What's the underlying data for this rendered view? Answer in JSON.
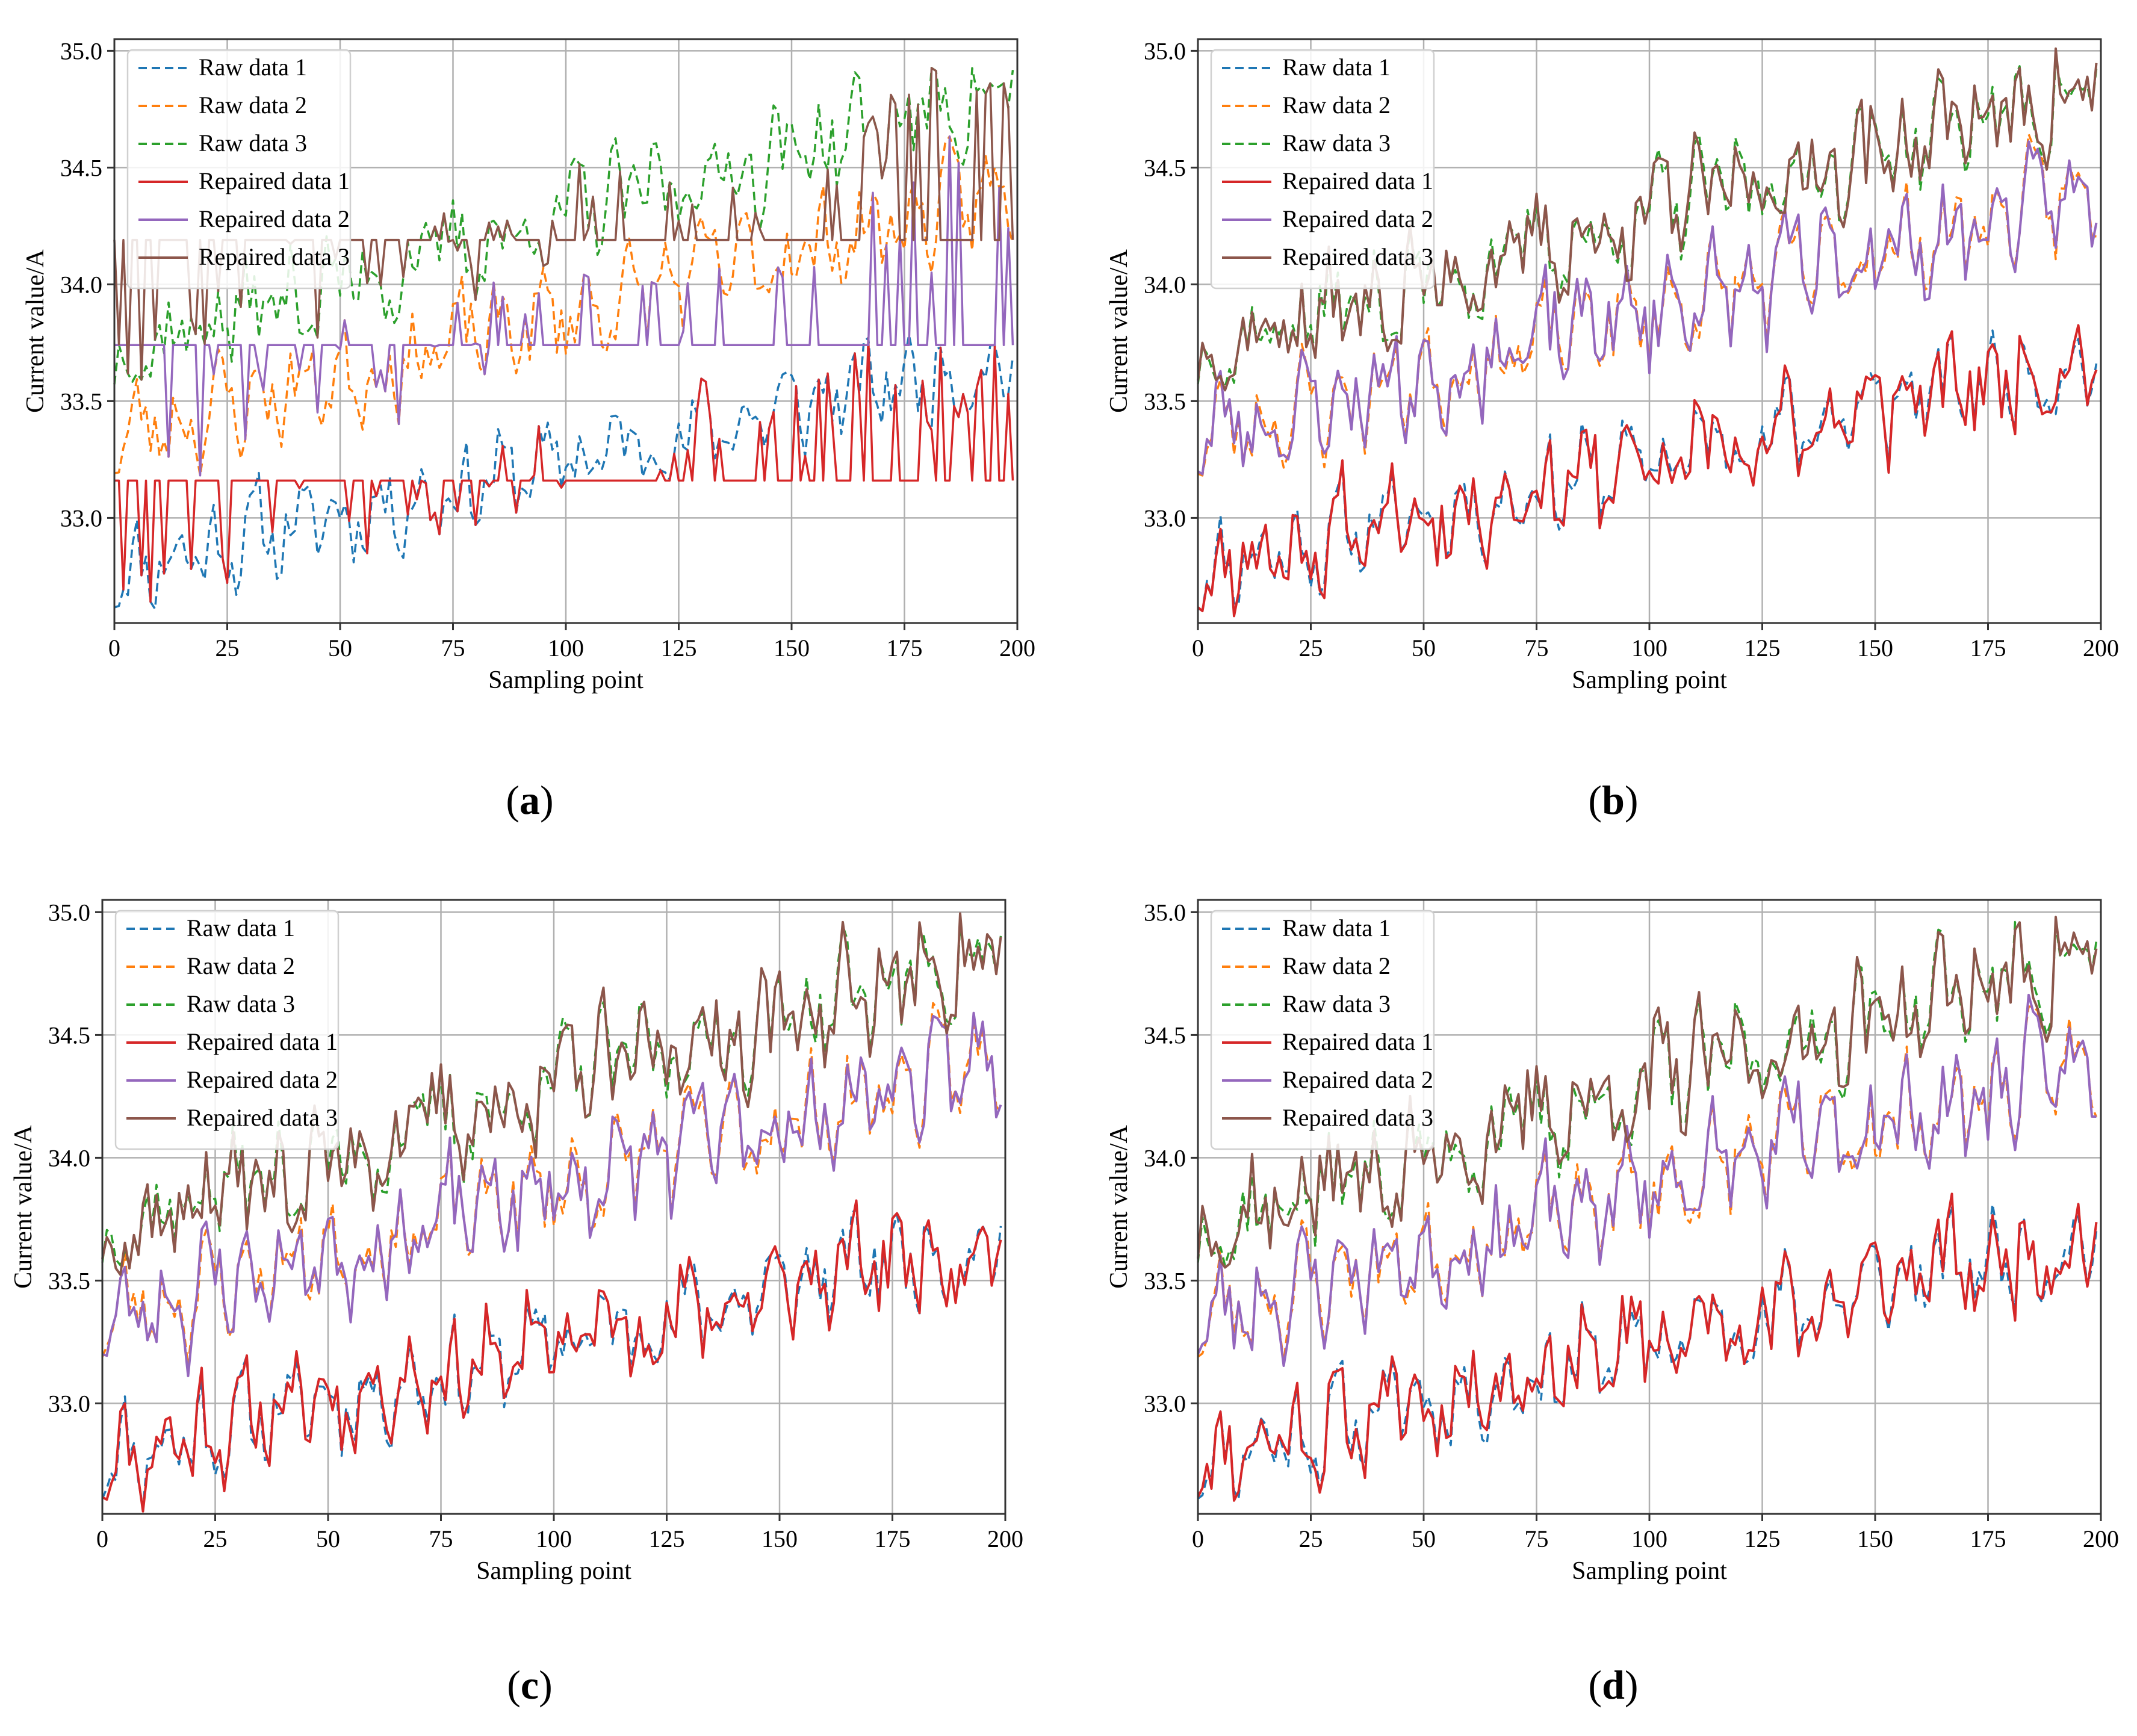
{
  "chart_data": [
    {
      "panel": "a",
      "type": "line",
      "xlabel": "Sampling point",
      "ylabel": "Current value/A",
      "xlim": [
        0,
        200
      ],
      "ylim": [
        32.55,
        35.05
      ],
      "xticks": [
        0,
        25,
        50,
        75,
        100,
        125,
        150,
        175,
        200
      ],
      "yticks": [
        33.0,
        33.5,
        34.0,
        34.5,
        35.0
      ],
      "ytick_labels": [
        "33.0",
        "33.5",
        "34.0",
        "34.5",
        "35.0"
      ],
      "legend_position": "top-left",
      "legend": [
        "Raw data 1",
        "Raw data 2",
        "Raw data 3",
        "Repaired data 1",
        "Repaired data 2",
        "Repaired data 3"
      ],
      "repair_style": "flat-fill"
    },
    {
      "panel": "b",
      "type": "line",
      "xlabel": "Sampling point",
      "ylabel": "Current value/A",
      "xlim": [
        0,
        200
      ],
      "ylim": [
        32.55,
        35.05
      ],
      "xticks": [
        0,
        25,
        50,
        75,
        100,
        125,
        150,
        175,
        200
      ],
      "yticks": [
        33.0,
        33.5,
        34.0,
        34.5,
        35.0
      ],
      "ytick_labels": [
        "33.0",
        "33.5",
        "34.0",
        "34.5",
        "35.0"
      ],
      "legend_position": "top-left",
      "legend": [
        "Raw data 1",
        "Raw data 2",
        "Raw data 3",
        "Repaired data 1",
        "Repaired data 2",
        "Repaired data 3"
      ],
      "repair_style": "close"
    },
    {
      "panel": "c",
      "type": "line",
      "xlabel": "Sampling point",
      "ylabel": "Current value/A",
      "xlim": [
        0,
        200
      ],
      "ylim": [
        32.55,
        35.05
      ],
      "xticks": [
        0,
        25,
        50,
        75,
        100,
        125,
        150,
        175,
        200
      ],
      "yticks": [
        33.0,
        33.5,
        34.0,
        34.5,
        35.0
      ],
      "ytick_labels": [
        "33.0",
        "33.5",
        "34.0",
        "34.5",
        "35.0"
      ],
      "legend_position": "top-left",
      "legend": [
        "Raw data 1",
        "Raw data 2",
        "Raw data 3",
        "Repaired data 1",
        "Repaired data 2",
        "Repaired data 3"
      ],
      "repair_style": "close"
    },
    {
      "panel": "d",
      "type": "line",
      "xlabel": "Sampling point",
      "ylabel": "Current value/A",
      "xlim": [
        0,
        200
      ],
      "ylim": [
        32.55,
        35.05
      ],
      "xticks": [
        0,
        25,
        50,
        75,
        100,
        125,
        150,
        175,
        200
      ],
      "yticks": [
        33.0,
        33.5,
        34.0,
        34.5,
        35.0
      ],
      "ytick_labels": [
        "33.0",
        "33.5",
        "34.0",
        "34.5",
        "35.0"
      ],
      "legend_position": "top-left",
      "legend": [
        "Raw data 1",
        "Raw data 2",
        "Raw data 3",
        "Repaired data 1",
        "Repaired data 2",
        "Repaired data 3"
      ],
      "repair_style": "close"
    }
  ],
  "series_style": {
    "raw1_color": "#1f77b4",
    "raw2_color": "#ff7f0e",
    "raw3_color": "#2ca02c",
    "rep1_color": "#d62728",
    "rep2_color": "#9467bd",
    "rep3_color": "#8c564b"
  },
  "captions": {
    "a": "a",
    "b": "b",
    "c": "c",
    "d": "d"
  }
}
